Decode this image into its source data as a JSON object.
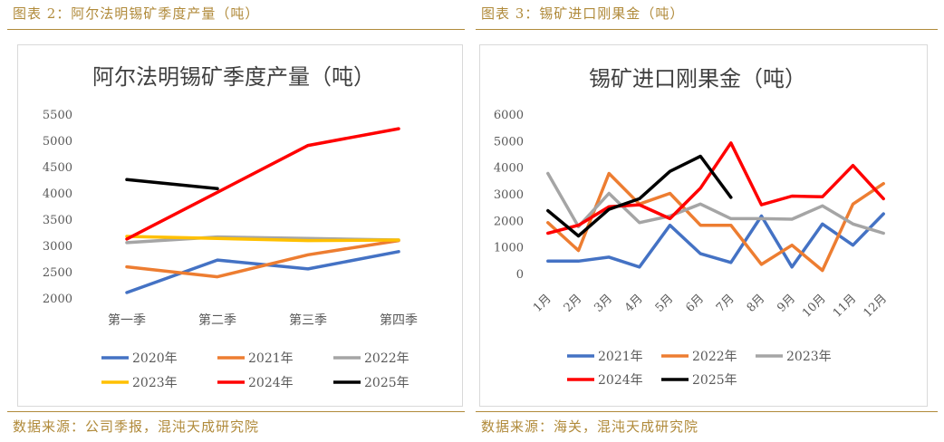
{
  "left": {
    "header": "图表 2：阿尔法明锡矿季度产量（吨）",
    "source": "数据来源：公司季报，混沌天成研究院"
  },
  "right": {
    "header": "图表 3：锡矿进口刚果金（吨）",
    "source": "数据来源：海关，混沌天成研究院"
  },
  "chart_data": [
    {
      "type": "line",
      "title": "阿尔法明锡矿季度产量（吨）",
      "categories": [
        "第一季",
        "第二季",
        "第三季",
        "第四季"
      ],
      "yticks": [
        "5500",
        "5000",
        "4500",
        "4000",
        "3500",
        "3000",
        "2500",
        "2000"
      ],
      "ylim": [
        2000,
        5500
      ],
      "grid": false,
      "legend_position": "bottom",
      "series": [
        {
          "name": "2020年",
          "color": "#4472c4",
          "values": [
            2120,
            2740,
            2570,
            2900
          ]
        },
        {
          "name": "2021年",
          "color": "#ed7d31",
          "values": [
            2610,
            2420,
            2840,
            3110
          ]
        },
        {
          "name": "2022年",
          "color": "#a5a5a5",
          "values": [
            3070,
            3180,
            3150,
            3120
          ]
        },
        {
          "name": "2023年",
          "color": "#ffc000",
          "values": [
            3190,
            3150,
            3110,
            3120
          ]
        },
        {
          "name": "2024年",
          "color": "#ff0000",
          "values": [
            3140,
            4030,
            4920,
            5240
          ]
        },
        {
          "name": "2025年",
          "color": "#000000",
          "values": [
            4270,
            4100,
            null,
            null
          ]
        }
      ]
    },
    {
      "type": "line",
      "title": "锡矿进口刚果金（吨）",
      "categories": [
        "1月",
        "2月",
        "3月",
        "4月",
        "5月",
        "6月",
        "7月",
        "8月",
        "9月",
        "10月",
        "11月",
        "12月"
      ],
      "yticks": [
        "6000",
        "5000",
        "4000",
        "3000",
        "2000",
        "1000",
        "0"
      ],
      "ylim": [
        0,
        6000
      ],
      "grid": false,
      "legend_position": "bottom",
      "series": [
        {
          "name": "2021年",
          "color": "#4472c4",
          "values": [
            500,
            500,
            650,
            280,
            1850,
            780,
            450,
            2200,
            280,
            1900,
            1100,
            2280
          ]
        },
        {
          "name": "2022年",
          "color": "#ed7d31",
          "values": [
            1950,
            900,
            3800,
            2650,
            3050,
            1850,
            1850,
            380,
            1100,
            150,
            2650,
            3420
          ]
        },
        {
          "name": "2023年",
          "color": "#a5a5a5",
          "values": [
            3800,
            1800,
            3050,
            1950,
            2200,
            2650,
            2100,
            2100,
            2080,
            2580,
            1900,
            1550
          ]
        },
        {
          "name": "2024年",
          "color": "#ff0000",
          "values": [
            1550,
            1850,
            2550,
            2620,
            2100,
            3250,
            4950,
            2620,
            2950,
            2920,
            4100,
            2850
          ]
        },
        {
          "name": "2025年",
          "color": "#000000",
          "values": [
            2400,
            1450,
            2450,
            2850,
            3880,
            4450,
            2900,
            null,
            null,
            null,
            null,
            null
          ]
        }
      ]
    }
  ]
}
